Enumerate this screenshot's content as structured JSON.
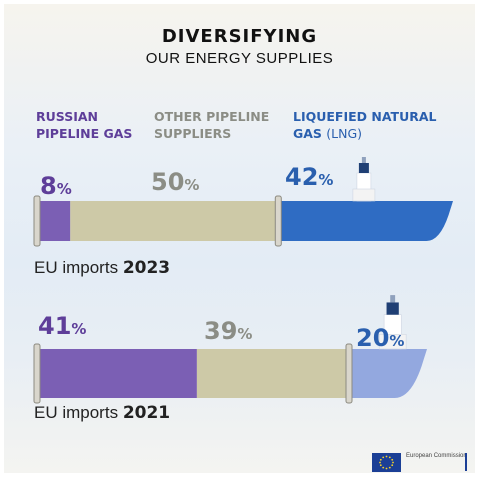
{
  "title": "DIVERSIFYING",
  "subtitle": "OUR ENERGY SUPPLIES",
  "categories": {
    "russian": {
      "line1": "RUSSIAN",
      "line2": "PIPELINE GAS"
    },
    "other": {
      "line1": "OTHER PIPELINE",
      "line2": "SUPPLIERS"
    },
    "lng": {
      "line1": "LIQUEFIED NATURAL",
      "line2": "GAS",
      "line2_extra": "(LNG)"
    }
  },
  "percent_sign": "%",
  "labels": {
    "y2023": {
      "prefix": "EU imports",
      "year": "2023"
    },
    "y2021": {
      "prefix": "EU imports",
      "year": "2021"
    }
  },
  "logo_text": "European Commission",
  "colors": {
    "russian": "#7b5fb4",
    "other": "#cdc9a7",
    "lng_2023": "#2f6cc3",
    "lng_2021": "#93a8df"
  },
  "chart_data": {
    "type": "bar",
    "stacked": true,
    "orientation": "horizontal",
    "title": "DIVERSIFYING OUR ENERGY SUPPLIES",
    "categories": [
      "2023",
      "2021"
    ],
    "series": [
      {
        "name": "RUSSIAN PIPELINE GAS",
        "values": [
          8,
          41
        ]
      },
      {
        "name": "OTHER PIPELINE SUPPLIERS",
        "values": [
          50,
          39
        ]
      },
      {
        "name": "LIQUEFIED NATURAL GAS (LNG)",
        "values": [
          42,
          20
        ]
      }
    ],
    "unit": "%",
    "xlim": [
      0,
      100
    ]
  }
}
